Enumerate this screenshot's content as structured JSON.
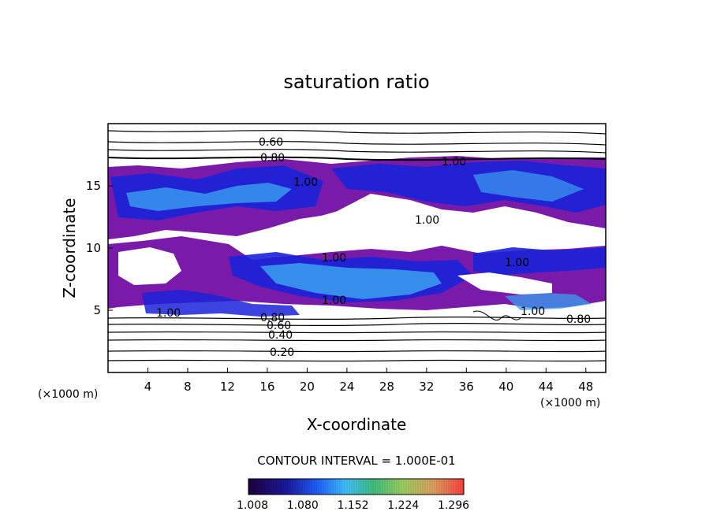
{
  "chart_data": {
    "type": "heatmap",
    "title": "saturation ratio",
    "xlabel": "X-coordinate",
    "ylabel": "Z-coordinate",
    "x_unit": "(×1000 m)",
    "z_unit": "(×1000 m)",
    "xlim": [
      0,
      50
    ],
    "ylim": [
      0,
      20
    ],
    "x_ticks": [
      "4",
      "8",
      "12",
      "16",
      "20",
      "24",
      "28",
      "32",
      "36",
      "40",
      "44",
      "48"
    ],
    "y_ticks": [
      "5",
      "10",
      "15"
    ],
    "contour_interval_text": "CONTOUR INTERVAL = 1.000E-01",
    "contour_labels": [
      "0.60",
      "0.80",
      "1.00",
      "1.00",
      "1.00",
      "1.00",
      "1.00",
      "1.00",
      "1.00",
      "1.00",
      "0.80",
      "0.60",
      "0.40",
      "0.20",
      "0.80"
    ],
    "colorbar": {
      "tick_labels": [
        "1.008",
        "1.080",
        "1.152",
        "1.224",
        "1.296"
      ],
      "colors": [
        "#200040",
        "#1a1aa0",
        "#2060ff",
        "#40c0ff",
        "#40c080",
        "#80e060",
        "#e0c060",
        "#ff6040"
      ]
    },
    "fill_colors": {
      "supersaturated_low": "#7a1aa8",
      "blue": "#1a22d8",
      "cyan": "#3aa0f0"
    },
    "grid": false
  }
}
